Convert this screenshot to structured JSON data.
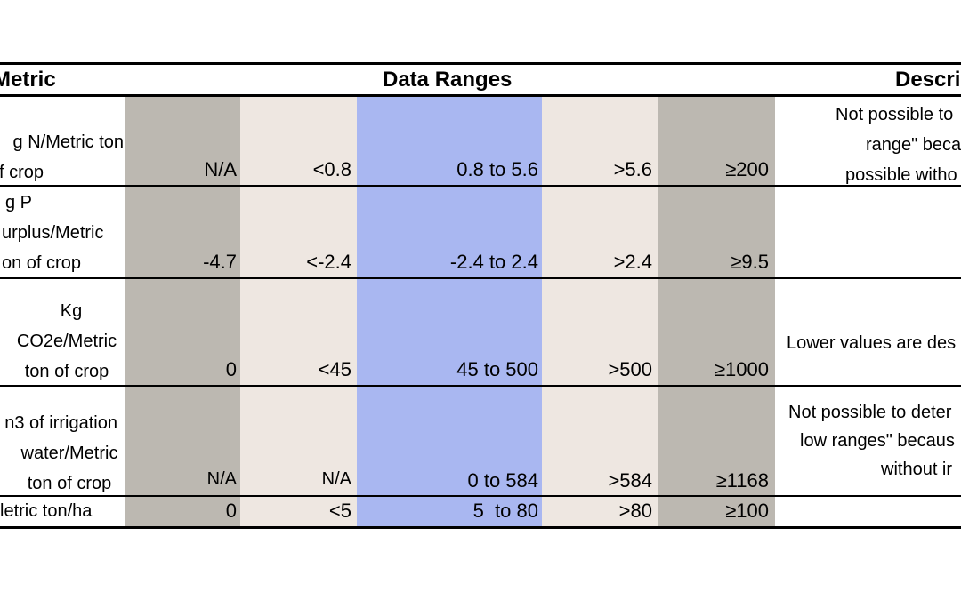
{
  "header": {
    "metric": "Metric",
    "ranges": "Data Ranges",
    "description": "Descri"
  },
  "rows": [
    {
      "metric_lines": [
        "g N/Metric ton",
        "f crop"
      ],
      "values": [
        "N/A",
        "<0.8",
        "0.8 to 5.6",
        ">5.6",
        "≥200"
      ],
      "description_lines": [
        "Not possible to",
        "range\" becaus",
        "possible witho"
      ]
    },
    {
      "metric_lines": [
        "g P",
        "urplus/Metric",
        "on of crop"
      ],
      "values": [
        "-4.7",
        "<-2.4",
        "-2.4 to 2.4",
        ">2.4",
        "≥9.5"
      ],
      "description_lines": []
    },
    {
      "metric_lines": [
        "Kg",
        "CO2e/Metric",
        "ton of crop"
      ],
      "values": [
        "0",
        "<45",
        "45 to 500",
        ">500",
        "≥1000"
      ],
      "description_lines": [
        "Lower values are des"
      ]
    },
    {
      "metric_lines": [
        "n3 of irrigation",
        "water/Metric",
        "ton of crop"
      ],
      "values": [
        "N/A",
        "N/A",
        "0 to 584",
        ">584",
        "≥1168"
      ],
      "description_lines": [
        "Not possible to deter",
        "low ranges\" becaus",
        "without ir"
      ]
    },
    {
      "metric_lines": [
        "letric ton/ha"
      ],
      "values": [
        "0",
        "<5",
        "5  to 80",
        ">80",
        "≥100"
      ],
      "description_lines": []
    }
  ],
  "colors": {
    "dark_band": "#bcb8b1",
    "light_band": "#eee7e1",
    "target_band": "#a9b7f1"
  }
}
